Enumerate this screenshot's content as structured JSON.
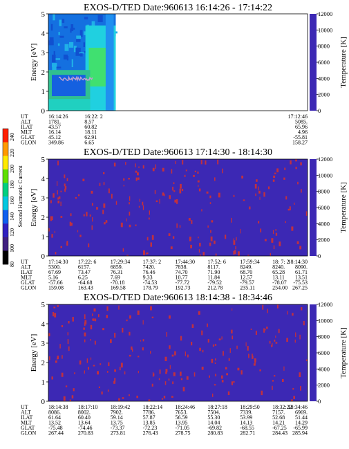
{
  "colors": {
    "background_navy": "#3c28b4",
    "trace_red": "#c03040",
    "cyan": "#20d0e0",
    "blue": "#1a50d8",
    "green": "#40e070"
  },
  "colorbar": {
    "label": "Second Harmonic Current",
    "ticks": [
      "240",
      "220",
      "200",
      "180",
      "160",
      "140",
      "120",
      "100",
      "80"
    ],
    "colors": [
      "#ff2000",
      "#ff9a00",
      "#ffea00",
      "#60e000",
      "#00d080",
      "#00c8e0",
      "#1060f0",
      "#3020c0",
      "#402080",
      "#000000"
    ]
  },
  "chart_data": [
    {
      "type": "heatmap",
      "title": "EXOS-D/TED   Date:960613   16:14:26 - 17:14:22",
      "ylabel": "Energy [eV]",
      "y2label": "Temperature [K]",
      "ylim": [
        0,
        5
      ],
      "y2lim": [
        0,
        12000
      ],
      "yticks": [
        "0",
        "1",
        "2",
        "3",
        "4",
        "5"
      ],
      "y2ticks": [
        "0",
        "2000",
        "4000",
        "6000",
        "8000",
        "10000",
        "12000"
      ],
      "data_fraction": 0.26,
      "rows": [
        {
          "name": "UT",
          "values": [
            "16:14:26",
            "16:22: 2",
            "17:12:46"
          ]
        },
        {
          "name": "ALT",
          "values": [
            "1781.",
            "8.57",
            "5085."
          ]
        },
        {
          "name": "ILAT",
          "values": [
            "43.57",
            "60.82",
            "65.96"
          ]
        },
        {
          "name": "MLT",
          "values": [
            "16.14",
            "18.11",
            "4.96"
          ]
        },
        {
          "name": "GLAT",
          "values": [
            "45.12",
            "62.91",
            "-55.81"
          ]
        },
        {
          "name": "GLON",
          "values": [
            "349.86",
            "6.65",
            "158.27"
          ]
        }
      ],
      "columns_at": [
        0.0,
        0.15,
        1.0
      ]
    },
    {
      "type": "heatmap",
      "title": "EXOS-D/TED   Date:960613   17:14:30 - 18:14:30",
      "ylabel": "Energy [eV]",
      "y2label": "Temperature [K]",
      "ylim": [
        0,
        5
      ],
      "y2lim": [
        0,
        12000
      ],
      "yticks": [
        "0",
        "1",
        "2",
        "3",
        "4",
        "5"
      ],
      "y2ticks": [
        "0",
        "2000",
        "4000",
        "6000",
        "8000",
        "10000",
        "12000"
      ],
      "rows": [
        {
          "name": "UT",
          "values": [
            "17:14:30",
            "17:22: 6",
            "17:29:34",
            "17:37: 2",
            "17:44:30",
            "17:52: 6",
            "17:59:34",
            "18: 7: 2",
            "18:14:30"
          ]
        },
        {
          "name": "ALT",
          "values": [
            "5300.",
            "6157.",
            "6859.",
            "7420.",
            "7838.",
            "8117.",
            "8249.",
            "8240.",
            "8090."
          ]
        },
        {
          "name": "ILAT",
          "values": [
            "67.69",
            "73.47",
            "76.31",
            "76.46",
            "74.70",
            "71.90",
            "68.70",
            "65.28",
            "61.71"
          ]
        },
        {
          "name": "MLT",
          "values": [
            "5.16",
            "6.25",
            "7.69",
            "9.33",
            "10.77",
            "11.84",
            "12.57",
            "13.11",
            "13.51"
          ]
        },
        {
          "name": "GLAT",
          "values": [
            "-57.66",
            "-64.68",
            "-70.18",
            "-74.53",
            "-77.72",
            "-79.52",
            "-79.57",
            "-78.07",
            "-75.53"
          ]
        },
        {
          "name": "GLON",
          "values": [
            "159.08",
            "163.43",
            "169.58",
            "178.79",
            "192.73",
            "212.78",
            "235.11",
            "254.00",
            "267.25"
          ]
        }
      ]
    },
    {
      "type": "heatmap",
      "title": "EXOS-D/TED   Date:960613   18:14:38 - 18:34:46",
      "ylabel": "Energy [eV]",
      "y2label": "Temperature [K]",
      "ylim": [
        0,
        5
      ],
      "y2lim": [
        0,
        12000
      ],
      "yticks": [
        "0",
        "1",
        "2",
        "3",
        "4",
        "5"
      ],
      "y2ticks": [
        "0",
        "2000",
        "4000",
        "6000",
        "8000",
        "10000",
        "12000"
      ],
      "rows": [
        {
          "name": "UT",
          "values": [
            "18:14:38",
            "18:17:10",
            "18:19:42",
            "18:22:14",
            "18:24:46",
            "18:27:18",
            "18:29:50",
            "18:32:22",
            "18:34:46"
          ]
        },
        {
          "name": "ALT",
          "values": [
            "8086.",
            "8002.",
            "7902.",
            "7786.",
            "7653.",
            "7504.",
            "7339.",
            "7157.",
            "6969."
          ]
        },
        {
          "name": "ILAT",
          "values": [
            "61.64",
            "60.40",
            "59.14",
            "57.87",
            "56.59",
            "55.30",
            "53.99",
            "52.68",
            "51.44"
          ]
        },
        {
          "name": "MLT",
          "values": [
            "13.52",
            "13.64",
            "13.75",
            "13.85",
            "13.95",
            "14.04",
            "14.13",
            "14.21",
            "14.29"
          ]
        },
        {
          "name": "GLAT",
          "values": [
            "-75.48",
            "-74.46",
            "-73.37",
            "-72.23",
            "-71.05",
            "-69.82",
            "-68.55",
            "-67.25",
            "-65.99"
          ]
        },
        {
          "name": "GLON",
          "values": [
            "267.44",
            "270.83",
            "273.81",
            "276.43",
            "278.75",
            "280.83",
            "282.71",
            "284.43",
            "285.94"
          ]
        }
      ]
    }
  ]
}
